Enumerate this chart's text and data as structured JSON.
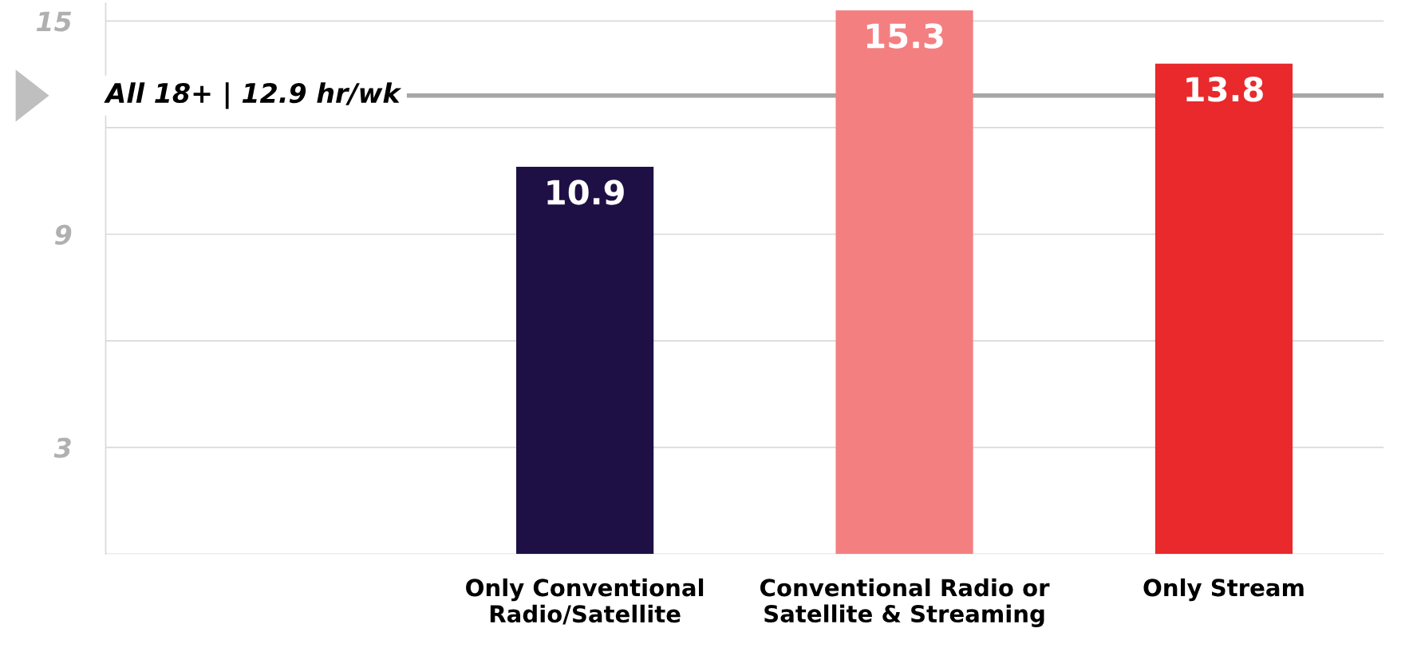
{
  "chart_data": {
    "type": "bar",
    "categories": [
      null,
      "Only Conventional\nRadio/Satellite",
      "Conventional Radio or\nSatellite & Streaming",
      "Only Stream"
    ],
    "values": [
      null,
      10.9,
      15.3,
      13.8
    ],
    "colors": [
      "#1e1045",
      "#1e1045",
      "#f47f80",
      "#e9292b"
    ],
    "data_labels": true,
    "ylim": [
      0,
      15.5
    ],
    "yticks": [
      {
        "value": 0,
        "label": null
      },
      3,
      {
        "value": 6,
        "label": null
      },
      9,
      {
        "value": 12,
        "label": null
      },
      15
    ],
    "grid": "y",
    "ref_lines": [
      {
        "axis": "y",
        "value": 12.9,
        "label": "All 18+ | 12.9 hr/wk",
        "color": "#a6a6a6"
      }
    ]
  }
}
